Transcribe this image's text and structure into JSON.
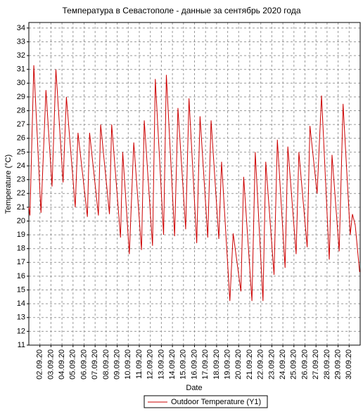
{
  "chart_data": {
    "type": "line",
    "title": "Температура в Севастополе - данные за сентябрь 2020 года",
    "x_label": "Date",
    "y_label": "Temperature (°C)",
    "x": [
      1.0,
      1.1,
      1.45,
      2.1,
      2.55,
      3.1,
      3.45,
      4.1,
      4.4,
      5.2,
      5.45,
      6.3,
      6.5,
      7.3,
      7.5,
      8.3,
      8.5,
      9.3,
      9.5,
      10.1,
      10.5,
      11.2,
      11.45,
      12.2,
      12.45,
      13.2,
      13.45,
      14.2,
      14.5,
      15.2,
      15.5,
      16.2,
      16.5,
      17.2,
      17.5,
      18.2,
      18.45,
      19.2,
      19.5,
      20.2,
      20.45,
      21.2,
      21.5,
      22.2,
      22.45,
      23.2,
      23.5,
      24.2,
      24.45,
      25.2,
      25.45,
      26.2,
      26.45,
      27.1,
      27.5,
      28.2,
      28.45,
      29.1,
      29.45,
      30.1,
      30.3,
      30.55,
      30.95
    ],
    "series": [
      {
        "name": "Outdoor Temperature (Y1)",
        "color": "#cc0000",
        "values": [
          21,
          20.4,
          31.3,
          20.6,
          29.5,
          22.5,
          31,
          22.8,
          29,
          21,
          26.4,
          20.3,
          26.4,
          20.4,
          27,
          20.5,
          27,
          18.8,
          25,
          17.6,
          25.7,
          17.9,
          27.3,
          18.2,
          30.3,
          19,
          30.6,
          18.9,
          28.2,
          19.4,
          28.9,
          18.4,
          27.6,
          18.8,
          27.3,
          18.7,
          24.3,
          14.2,
          19.1,
          14.9,
          23.2,
          14.2,
          25,
          14.2,
          24.3,
          16.1,
          25.9,
          16.6,
          25.4,
          17.6,
          25,
          18.1,
          26.9,
          22,
          29.1,
          17.2,
          24.8,
          17.8,
          28.5,
          19,
          20.5,
          19.7,
          16.3
        ]
      }
    ],
    "xlim": [
      1,
      31
    ],
    "xticks": [
      {
        "value": 2,
        "label": "02.09.20"
      },
      {
        "value": 3,
        "label": "03.09.20"
      },
      {
        "value": 4,
        "label": "04.09.20"
      },
      {
        "value": 5,
        "label": "05.09.20"
      },
      {
        "value": 6,
        "label": "06.09.20"
      },
      {
        "value": 7,
        "label": "07.09.20"
      },
      {
        "value": 8,
        "label": "08.09.20"
      },
      {
        "value": 9,
        "label": "09.09.20"
      },
      {
        "value": 10,
        "label": "10.09.20"
      },
      {
        "value": 11,
        "label": "11.09.20"
      },
      {
        "value": 12,
        "label": "12.09.20"
      },
      {
        "value": 13,
        "label": "13.09.20"
      },
      {
        "value": 14,
        "label": "14.09.20"
      },
      {
        "value": 15,
        "label": "15.09.20"
      },
      {
        "value": 16,
        "label": "16.09.20"
      },
      {
        "value": 17,
        "label": "17.09.20"
      },
      {
        "value": 18,
        "label": "18.09.20"
      },
      {
        "value": 19,
        "label": "19.09.20"
      },
      {
        "value": 20,
        "label": "20.09.20"
      },
      {
        "value": 21,
        "label": "21.09.20"
      },
      {
        "value": 22,
        "label": "22.09.20"
      },
      {
        "value": 23,
        "label": "23.09.20"
      },
      {
        "value": 24,
        "label": "24.09.20"
      },
      {
        "value": 25,
        "label": "25.09.20"
      },
      {
        "value": 26,
        "label": "26.09.20"
      },
      {
        "value": 27,
        "label": "27.09.20"
      },
      {
        "value": 28,
        "label": "28.09.20"
      },
      {
        "value": 29,
        "label": "29.09.20"
      },
      {
        "value": 30,
        "label": "30.09.20"
      }
    ],
    "ylim": [
      11,
      34.4
    ],
    "yticks": [
      11,
      12,
      13,
      14,
      15,
      16,
      17,
      18,
      19,
      20,
      21,
      22,
      23,
      24,
      25,
      26,
      27,
      28,
      29,
      30,
      31,
      32,
      33,
      34
    ],
    "grid": true
  }
}
